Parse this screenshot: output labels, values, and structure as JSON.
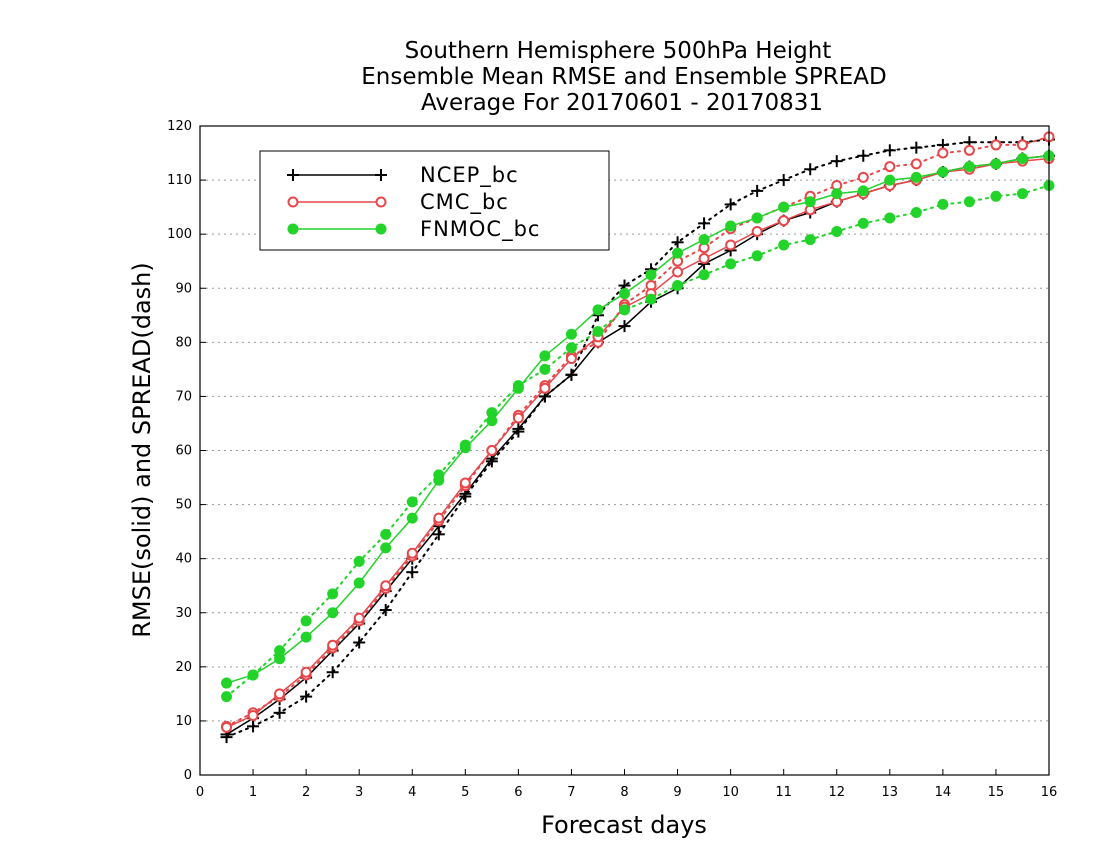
{
  "chart_data": {
    "type": "line",
    "title_lines": [
      "Southern Hemisphere 500hPa Height",
      "Ensemble Mean RMSE and Ensemble SPREAD",
      "Average For 20170601 - 20170831"
    ],
    "xlabel": "Forecast days",
    "ylabel": "RMSE(solid) and SPREAD(dash)",
    "xlim": [
      0,
      16
    ],
    "ylim": [
      0,
      120
    ],
    "xticks": [
      "0",
      "1",
      "2",
      "3",
      "4",
      "5",
      "6",
      "7",
      "8",
      "9",
      "10",
      "11",
      "12",
      "13",
      "14",
      "15",
      "16"
    ],
    "yticks": [
      "0",
      "10",
      "20",
      "30",
      "40",
      "50",
      "60",
      "70",
      "80",
      "90",
      "100",
      "110",
      "120"
    ],
    "grid": true,
    "legend_position": "top-left",
    "x": [
      0.5,
      1,
      1.5,
      2,
      2.5,
      3,
      3.5,
      4,
      4.5,
      5,
      5.5,
      6,
      6.5,
      7,
      7.5,
      8,
      8.5,
      9,
      9.5,
      10,
      10.5,
      11,
      11.5,
      12,
      12.5,
      13,
      13.5,
      14,
      14.5,
      15,
      15.5,
      16
    ],
    "series": [
      {
        "name": "NCEP_bc",
        "color": "#000000",
        "marker": "plus",
        "rmse": [
          7.5,
          10.5,
          14,
          18,
          23,
          28,
          34,
          40,
          46,
          52,
          58.5,
          64,
          70,
          74,
          80,
          83,
          87.5,
          90,
          94.5,
          97,
          100,
          102.5,
          104,
          106,
          107.5,
          109,
          110,
          111.5,
          112.5,
          113,
          114,
          114.5
        ],
        "spread": [
          7,
          9,
          11.5,
          14.5,
          19,
          24.5,
          30.5,
          37.5,
          44.5,
          51.5,
          58,
          63.5,
          70,
          74,
          85,
          90.5,
          93.5,
          98.5,
          102,
          105.5,
          108,
          110,
          112,
          113.5,
          114.5,
          115.5,
          116,
          116.5,
          117,
          117,
          117,
          117.5
        ]
      },
      {
        "name": "CMC_bc",
        "color": "#e8474a",
        "marker": "open-circle",
        "rmse": [
          8.8,
          11,
          15,
          19,
          24,
          29,
          35,
          41,
          47.5,
          54,
          60,
          66,
          71.5,
          77,
          81,
          86.5,
          89,
          93,
          95.5,
          98,
          100.5,
          102.5,
          104.5,
          106,
          107.5,
          109,
          110,
          111.5,
          112,
          113,
          113.5,
          114
        ],
        "spread": [
          9,
          11.5,
          14.5,
          18.5,
          23.5,
          28.5,
          34.5,
          40.5,
          47,
          53.5,
          60,
          66.5,
          72,
          77.5,
          80,
          87,
          90.5,
          95,
          97.5,
          101,
          103,
          105,
          107,
          109,
          110.5,
          112.5,
          113,
          115,
          115.5,
          116.5,
          116.5,
          118
        ]
      },
      {
        "name": "FNMOC_bc",
        "color": "#22d32a",
        "marker": "filled-circle",
        "rmse": [
          17,
          18.5,
          21.5,
          25.5,
          30,
          35.5,
          42,
          47.5,
          54.5,
          60.5,
          65.5,
          71.5,
          77.5,
          81.5,
          86,
          89,
          92.5,
          96.5,
          99,
          101.5,
          103,
          105,
          106,
          107.5,
          108,
          110,
          110.5,
          111.5,
          112.5,
          113,
          114,
          114.5
        ],
        "spread": [
          14.5,
          18.5,
          23,
          28.5,
          33.5,
          39.5,
          44.5,
          50.5,
          55.5,
          61,
          67,
          72,
          75,
          79,
          82,
          86,
          88,
          90.5,
          92.5,
          94.5,
          96,
          98,
          99,
          100.5,
          102,
          103,
          104,
          105.5,
          106,
          107,
          107.5,
          109
        ]
      }
    ]
  }
}
